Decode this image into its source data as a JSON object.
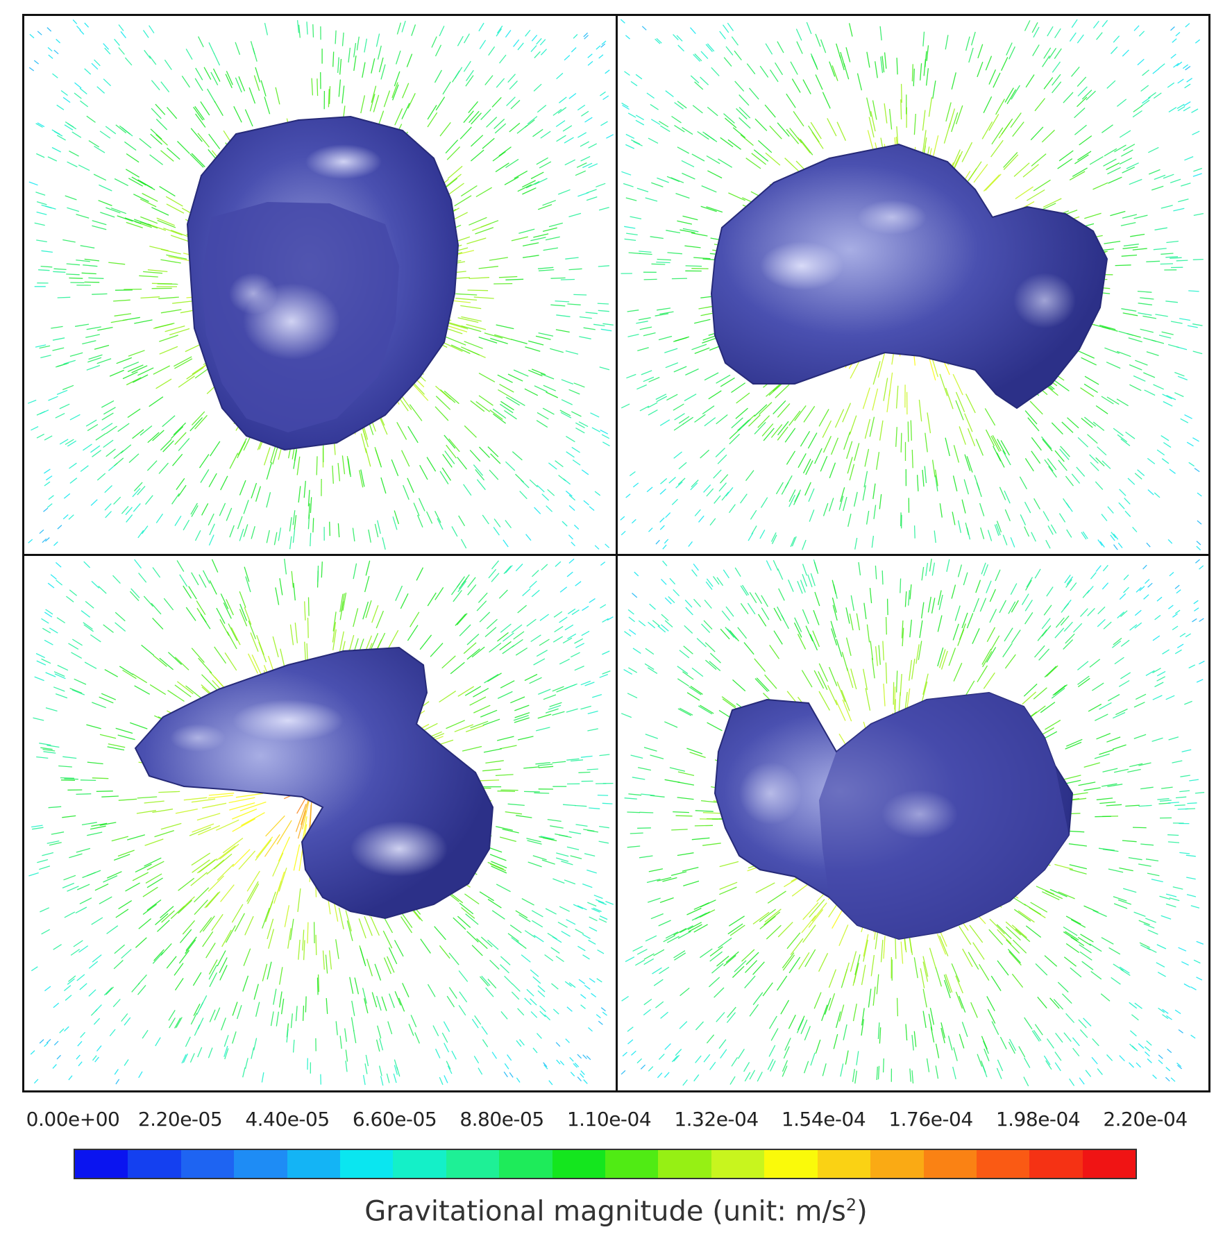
{
  "figure": {
    "panels": [
      {
        "id": "top-left",
        "view": "pole-on view of comet nucleus with gravity vectors"
      },
      {
        "id": "top-right",
        "view": "side view with two-lobe shape"
      },
      {
        "id": "bottom-left",
        "view": "oblique view, head lobe below body"
      },
      {
        "id": "bottom-right",
        "view": "side view, head lobe on left"
      }
    ],
    "colorbar": {
      "tick_labels": [
        "0.00e+00",
        "2.20e-05",
        "4.40e-05",
        "6.60e-05",
        "8.80e-05",
        "1.10e-04",
        "1.32e-04",
        "1.54e-04",
        "1.76e-04",
        "1.98e-04",
        "2.20e-04"
      ],
      "min": 0,
      "max": 0.00022,
      "colors": [
        "#0a14f0",
        "#1440f0",
        "#1e64f2",
        "#1e8cf5",
        "#14b4f5",
        "#0ae6f0",
        "#14f0c8",
        "#1ef096",
        "#1eeb5a",
        "#14e61e",
        "#50eb14",
        "#96f014",
        "#c8f51e",
        "#fafa0a",
        "#fad214",
        "#faaa14",
        "#fa8214",
        "#fa5a14",
        "#f53214",
        "#f01414"
      ],
      "title_main": "Gravitational magnitude (unit: m/s",
      "title_sup": "2",
      "title_end": ")"
    },
    "body_color": "#3c40a0",
    "highlight_color": "#d8dcf4"
  }
}
